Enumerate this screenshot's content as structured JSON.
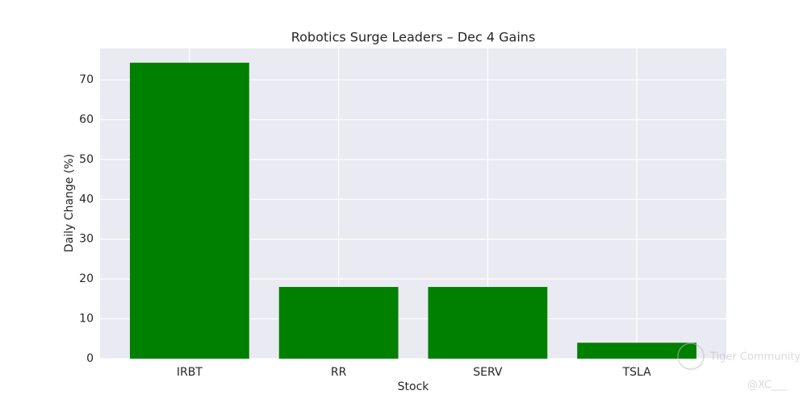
{
  "chart_data": {
    "type": "bar",
    "title": "Robotics Surge Leaders – Dec 4 Gains",
    "x_label": "Stock",
    "y_label": "Daily Change (%)",
    "categories": [
      "IRBT",
      "RR",
      "SERV",
      "TSLA"
    ],
    "values": [
      74.3,
      18.0,
      18.0,
      4.0
    ],
    "color": "#008000",
    "ylim": [
      0,
      77.9
    ],
    "yticks": [
      0,
      10,
      20,
      30,
      40,
      50,
      60,
      70
    ],
    "grid": true
  },
  "watermark": {
    "brand": "Tiger Community",
    "handle": "@XC___"
  }
}
